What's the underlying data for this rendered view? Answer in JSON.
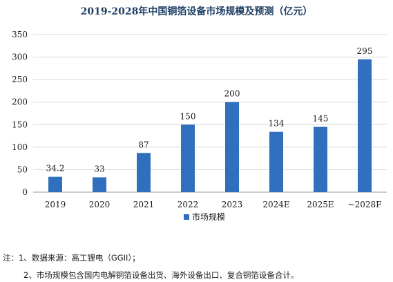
{
  "colors": {
    "bar": "#2f6fbd",
    "grid": "#d9d9d9",
    "title": "#1f3f63"
  },
  "chart_data": {
    "type": "bar",
    "title": "2019-2028年中国铜箔设备市场规模及预测（亿元）",
    "categories": [
      "2019",
      "2020",
      "2021",
      "2022",
      "2023",
      "2024E",
      "2025E",
      "~2028F"
    ],
    "series": [
      {
        "name": "市场规模",
        "values": [
          34.2,
          33,
          87,
          150,
          200,
          134,
          145,
          295
        ]
      }
    ],
    "data_labels": [
      "34.2",
      "33",
      "87",
      "150",
      "200",
      "134",
      "145",
      "295"
    ],
    "ylim": [
      0,
      350
    ],
    "yticks": [
      0,
      50,
      100,
      150,
      200,
      250,
      300,
      350
    ],
    "xlabel": "",
    "ylabel": "",
    "grid": true,
    "legend_position": "bottom"
  },
  "notes": [
    "注：1、数据来源：高工锂电（GGII）；",
    "2、市场规模包含国内电解铜箔设备出货、海外设备出口、复合铜箔设备合计。"
  ]
}
